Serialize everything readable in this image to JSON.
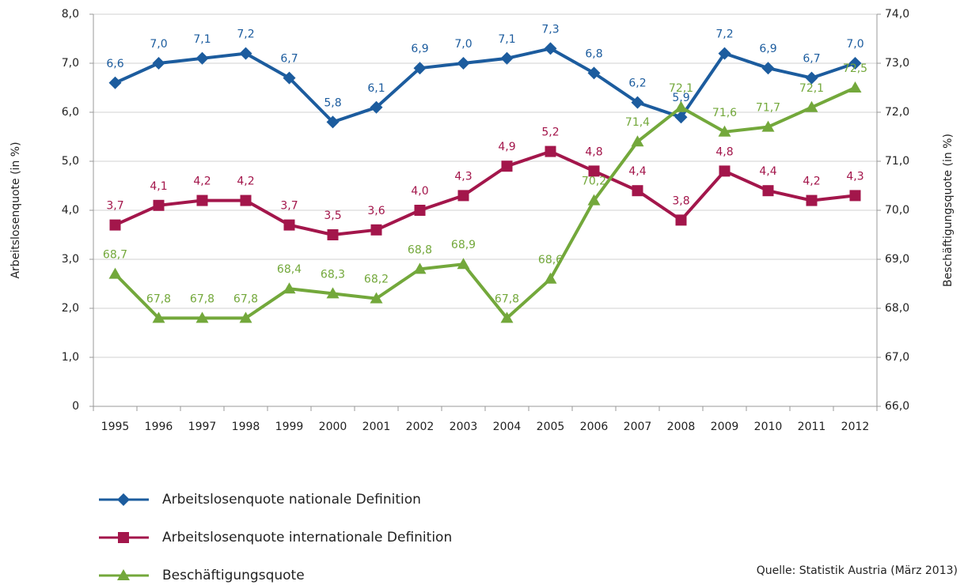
{
  "chart_data": {
    "type": "line",
    "categories": [
      "1995",
      "1996",
      "1997",
      "1998",
      "1999",
      "2000",
      "2001",
      "2002",
      "2003",
      "2004",
      "2005",
      "2006",
      "2007",
      "2008",
      "2009",
      "2010",
      "2011",
      "2012"
    ],
    "ylabel": "Arbeitslosenquote (in %)",
    "y2label": "Beschäftigungsquote (in %)",
    "ylim": [
      0,
      8
    ],
    "yticks": [
      0,
      {
        "value": 1,
        "label": "1,0"
      },
      {
        "value": 2,
        "label": "2,0"
      },
      {
        "value": 3,
        "label": "3,0"
      },
      {
        "value": 4,
        "label": "4,0"
      },
      {
        "value": 5,
        "label": "5,0"
      },
      {
        "value": 6,
        "label": "6,0"
      },
      {
        "value": 7,
        "label": "7,0"
      },
      {
        "value": 8,
        "label": "8,0"
      }
    ],
    "y2lim": [
      66,
      74
    ],
    "y2ticks": [
      {
        "value": 66,
        "label": "66,0"
      },
      {
        "value": 67,
        "label": "67,0"
      },
      {
        "value": 68,
        "label": "68,0"
      },
      {
        "value": 69,
        "label": "69,0"
      },
      {
        "value": 70,
        "label": "70,0"
      },
      {
        "value": 71,
        "label": "71,0"
      },
      {
        "value": 72,
        "label": "72,0"
      },
      {
        "value": 73,
        "label": "73,0"
      },
      {
        "value": 74,
        "label": "74,0"
      }
    ],
    "grid": true,
    "series": [
      {
        "name": "Arbeitslosenquote nationale Definition",
        "color": "#1c5c9e",
        "marker": "diamond",
        "values": [
          6.6,
          7.0,
          7.1,
          7.2,
          6.7,
          5.8,
          6.1,
          6.9,
          7.0,
          7.1,
          7.3,
          6.8,
          6.2,
          5.9,
          7.2,
          6.9,
          6.7,
          7.0
        ],
        "value_labels": [
          "6,6",
          "7,0",
          "7,1",
          "7,2",
          "6,7",
          "5,8",
          "6,1",
          "6,9",
          "7,0",
          "7,1",
          "7,3",
          "6,8",
          "6,2",
          "5,9",
          "7,2",
          "6,9",
          "6,7",
          "7,0"
        ]
      },
      {
        "name": "Arbeitslosenquote internationale Definition",
        "color": "#a3164b",
        "marker": "square",
        "values": [
          3.7,
          4.1,
          4.2,
          4.2,
          3.7,
          3.5,
          3.6,
          4.0,
          4.3,
          4.9,
          5.2,
          4.8,
          4.4,
          3.8,
          4.8,
          4.4,
          4.2,
          4.3
        ],
        "value_labels": [
          "3,7",
          "4,1",
          "4,2",
          "4,2",
          "3,7",
          "3,5",
          "3,6",
          "4,0",
          "4,3",
          "4,9",
          "5,2",
          "4,8",
          "4,4",
          "3,8",
          "4,8",
          "4,4",
          "4,2",
          "4,3"
        ]
      },
      {
        "name": "Beschäftigungsquote",
        "color": "#73a83b",
        "marker": "triangle",
        "axis": "y2",
        "values": [
          68.7,
          67.8,
          67.8,
          67.8,
          68.4,
          68.3,
          68.2,
          68.8,
          68.9,
          67.8,
          68.6,
          70.2,
          71.4,
          72.1,
          71.6,
          71.7,
          72.1,
          72.5
        ],
        "value_labels": [
          "68,7",
          "67,8",
          "67,8",
          "67,8",
          "68,4",
          "68,3",
          "68,2",
          "68,8",
          "68,9",
          "67,8",
          "68,6",
          "70,2",
          "71,4",
          "72,1",
          "71,6",
          "71,7",
          "72,1",
          "72,5"
        ]
      }
    ],
    "source": "Quelle: Statistik Austria (März 2013)"
  }
}
